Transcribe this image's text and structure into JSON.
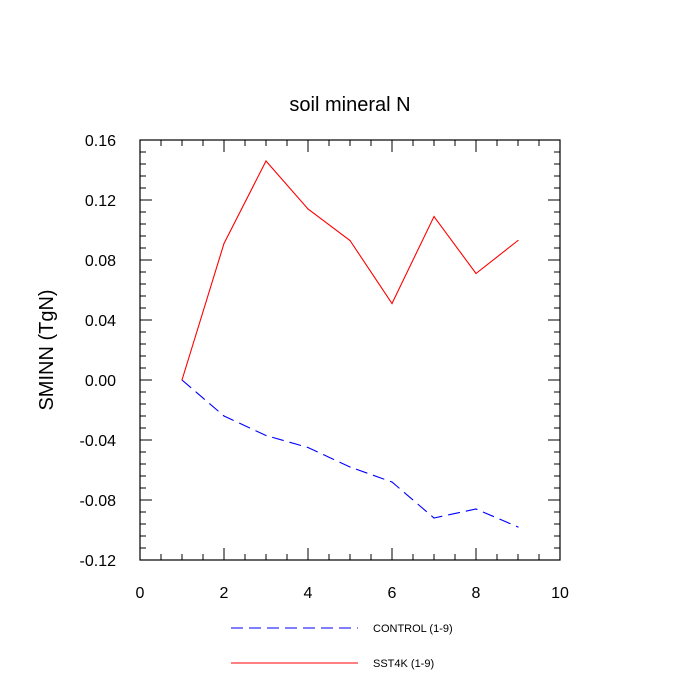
{
  "chart_data": {
    "type": "line",
    "title": "soil mineral N",
    "xlabel": "",
    "ylabel": "SMINN  (TgN)",
    "xlim": [
      0,
      10
    ],
    "ylim": [
      -0.12,
      0.16
    ],
    "x_ticks": [
      0,
      2,
      4,
      6,
      8,
      10
    ],
    "x_tick_labels": [
      "0",
      "2",
      "4",
      "6",
      "8",
      "10"
    ],
    "y_ticks": [
      -0.12,
      -0.08,
      -0.04,
      0.0,
      0.04,
      0.08,
      0.12,
      0.16
    ],
    "y_tick_labels": [
      "-0.12",
      "-0.08",
      "-0.04",
      "0.00",
      "0.04",
      "0.08",
      "0.12",
      "0.16"
    ],
    "grid": false,
    "legend_position": "bottom",
    "series": [
      {
        "name": "CONTROL (1-9)",
        "color": "#0000ff",
        "style": "dashed",
        "x": [
          1,
          2,
          3,
          4,
          5,
          6,
          7,
          8,
          9
        ],
        "values": [
          0.0,
          -0.024,
          -0.037,
          -0.045,
          -0.058,
          -0.068,
          -0.092,
          -0.086,
          -0.098
        ]
      },
      {
        "name": "SST4K (1-9)",
        "color": "#ff0000",
        "style": "solid",
        "x": [
          1,
          2,
          3,
          4,
          5,
          6,
          7,
          8,
          9
        ],
        "values": [
          0.0,
          0.091,
          0.146,
          0.114,
          0.093,
          0.051,
          0.109,
          0.071,
          0.093
        ]
      }
    ]
  }
}
